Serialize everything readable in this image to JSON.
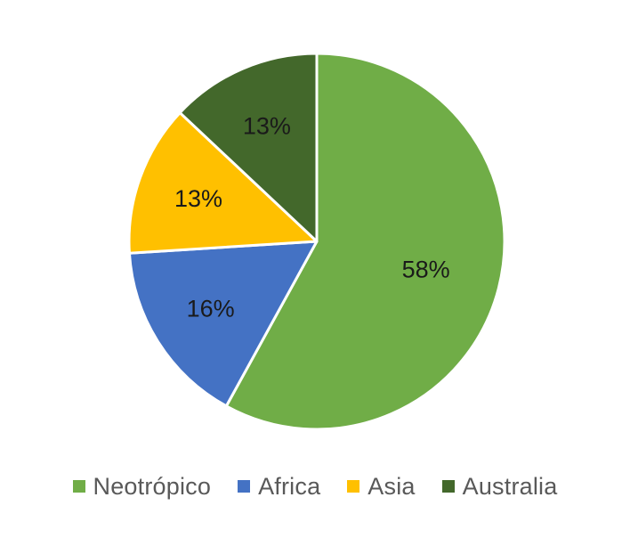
{
  "chart_data": {
    "type": "pie",
    "title": "",
    "start_angle_deg": 0,
    "direction": "clockwise",
    "legend_position": "bottom",
    "slices": [
      {
        "label": "Neotrópico",
        "value": 58,
        "display": "58%",
        "color": "#70AD47"
      },
      {
        "label": "Africa",
        "value": 16,
        "display": "16%",
        "color": "#4472C4"
      },
      {
        "label": "Asia",
        "value": 13,
        "display": "13%",
        "color": "#FFC000"
      },
      {
        "label": "Australia",
        "value": 13,
        "display": "13%",
        "color": "#43682B"
      }
    ]
  }
}
